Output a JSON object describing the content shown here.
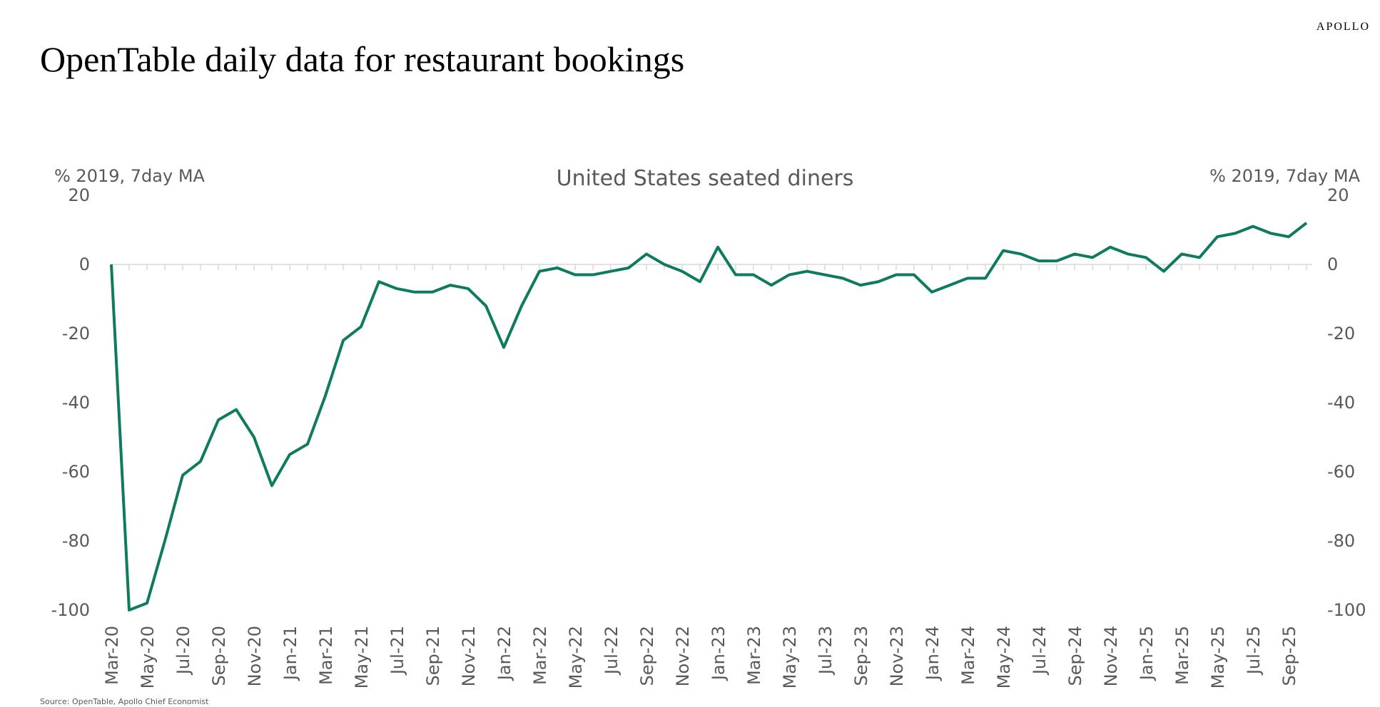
{
  "brand": "APOLLO",
  "source": "Source: OpenTable, Apollo Chief Economist",
  "chart_data": {
    "type": "line",
    "title": "OpenTable daily data for restaurant bookings",
    "subtitle": "United States seated diners",
    "ylabel": "% 2019, 7day MA",
    "y2label": "% 2019, 7day MA",
    "categories": [
      "Mar-20",
      null,
      "May-20",
      null,
      "Jul-20",
      null,
      "Sep-20",
      null,
      "Nov-20",
      null,
      "Jan-21",
      null,
      "Mar-21",
      null,
      "May-21",
      null,
      "Jul-21",
      null,
      "Sep-21",
      null,
      "Nov-21",
      null,
      "Jan-22",
      null,
      "Mar-22",
      null,
      "May-22",
      null,
      "Jul-22",
      null,
      "Sep-22",
      null,
      "Nov-22",
      null,
      "Jan-23",
      null,
      "Mar-23",
      null,
      "May-23",
      null,
      "Jul-23",
      null,
      "Sep-23",
      null,
      "Nov-23",
      null,
      "Jan-24",
      null,
      "Mar-24",
      null,
      "May-24",
      null,
      "Jul-24",
      null,
      "Sep-24",
      null,
      "Nov-24",
      null,
      "Jan-25",
      null,
      "Mar-25",
      null,
      "May-25",
      null,
      "Jul-25",
      null,
      "Sep-25",
      null
    ],
    "series": [
      {
        "name": "United States seated diners",
        "color": "#0e7a5f",
        "values": [
          0,
          -100,
          -98,
          -80,
          -61,
          -57,
          -45,
          -42,
          -50,
          -64,
          -55,
          -52,
          -38,
          -22,
          -18,
          -5,
          -7,
          -8,
          -8,
          -6,
          -7,
          -12,
          -24,
          -12,
          -2,
          -1,
          -3,
          -3,
          -2,
          -1,
          3,
          0,
          -2,
          -5,
          5,
          -3,
          -3,
          -6,
          -3,
          -2,
          -3,
          -4,
          -6,
          -5,
          -3,
          -3,
          -8,
          -6,
          -4,
          -4,
          4,
          3,
          1,
          1,
          3,
          2,
          5,
          3,
          2,
          -2,
          3,
          2,
          8,
          9,
          11,
          9,
          8,
          12
        ]
      }
    ],
    "ylim": [
      -100,
      20
    ],
    "yticks": [
      20,
      0,
      -20,
      -40,
      -60,
      -80,
      -100
    ],
    "y2lim": [
      -100,
      20
    ],
    "y2ticks": [
      20,
      0,
      -20,
      -40,
      -60,
      -80,
      -100
    ],
    "grid": false
  }
}
